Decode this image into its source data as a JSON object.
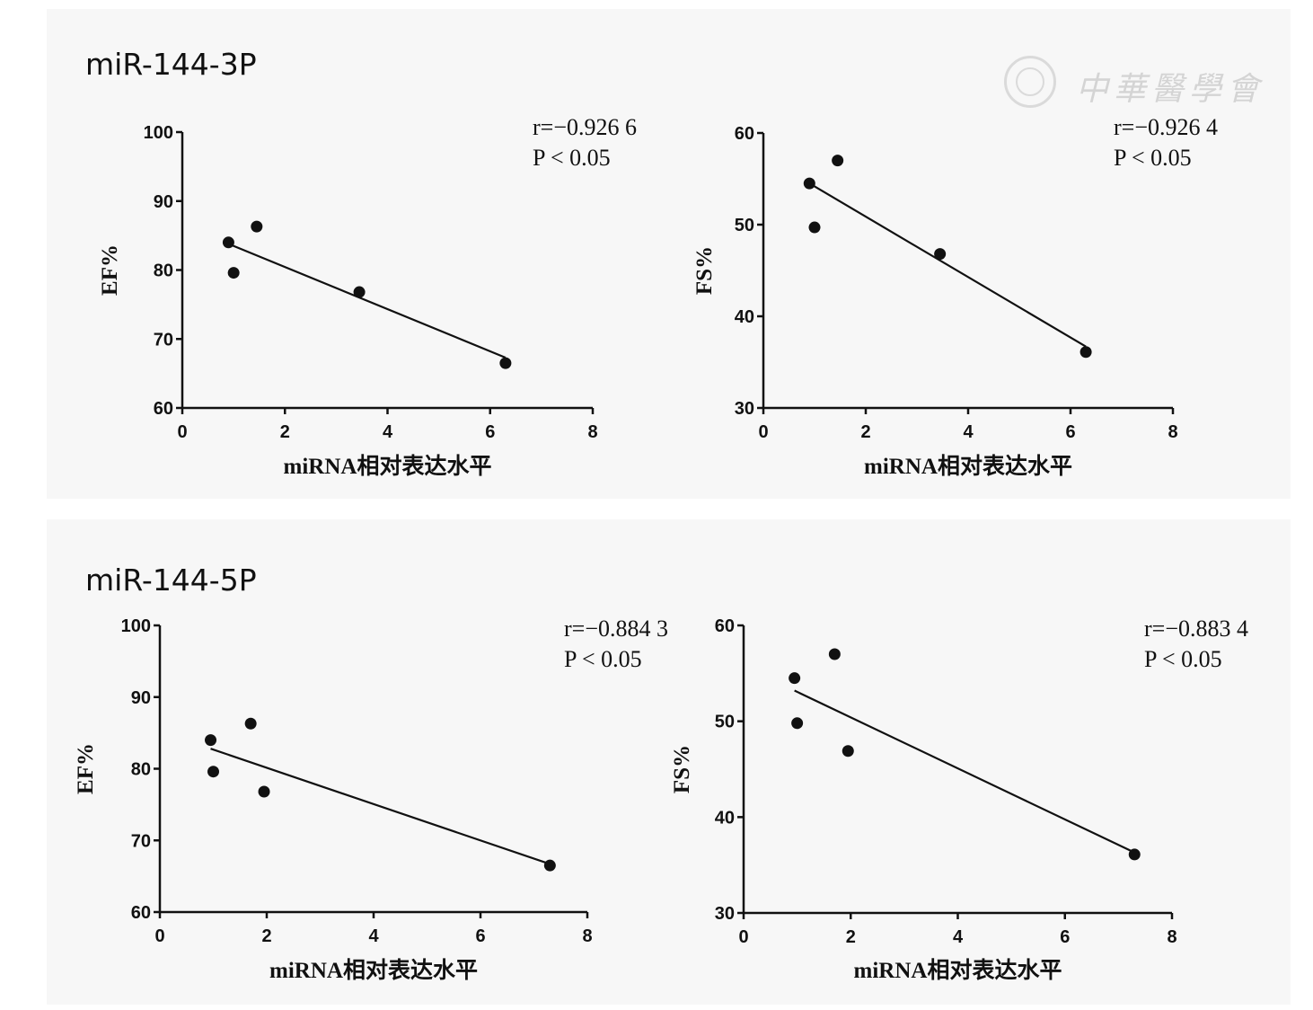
{
  "watermark": {
    "text": "中華醫學會",
    "icon": "society-seal-icon"
  },
  "groups": [
    {
      "title": "miR-144-3P"
    },
    {
      "title": "miR-144-5P"
    }
  ],
  "chart_data": [
    {
      "type": "scatter",
      "group": "miR-144-3P",
      "xlabel": "miRNA相对表达水平",
      "ylabel": "EF%",
      "xlim": [
        0,
        8
      ],
      "ylim": [
        60,
        100
      ],
      "xticks": [
        0,
        2,
        4,
        6,
        8
      ],
      "yticks": [
        60,
        70,
        80,
        90,
        100
      ],
      "points": [
        [
          0.9,
          84.0
        ],
        [
          1.0,
          79.6
        ],
        [
          1.45,
          86.3
        ],
        [
          3.45,
          76.8
        ],
        [
          6.3,
          66.5
        ]
      ],
      "regression": {
        "x": [
          0.9,
          6.3
        ],
        "y": [
          83.8,
          67.3
        ]
      },
      "r_label": "r=−0.926 6",
      "p_label": "P < 0.05"
    },
    {
      "type": "scatter",
      "group": "miR-144-3P",
      "xlabel": "miRNA相对表达水平",
      "ylabel": "FS%",
      "xlim": [
        0,
        8
      ],
      "ylim": [
        30,
        60
      ],
      "xticks": [
        0,
        2,
        4,
        6,
        8
      ],
      "yticks": [
        30,
        40,
        50,
        60
      ],
      "points": [
        [
          0.9,
          54.5
        ],
        [
          1.0,
          49.7
        ],
        [
          1.45,
          57.0
        ],
        [
          3.45,
          46.8
        ],
        [
          6.3,
          36.1
        ]
      ],
      "regression": {
        "x": [
          0.9,
          6.3
        ],
        "y": [
          54.5,
          36.7
        ]
      },
      "r_label": "r=−0.926 4",
      "p_label": "P < 0.05"
    },
    {
      "type": "scatter",
      "group": "miR-144-5P",
      "xlabel": "miRNA相对表达水平",
      "ylabel": "EF%",
      "xlim": [
        0,
        8
      ],
      "ylim": [
        60,
        100
      ],
      "xticks": [
        0,
        2,
        4,
        6,
        8
      ],
      "yticks": [
        60,
        70,
        80,
        90,
        100
      ],
      "points": [
        [
          0.95,
          84.0
        ],
        [
          1.0,
          79.6
        ],
        [
          1.7,
          86.3
        ],
        [
          1.95,
          76.8
        ],
        [
          7.3,
          66.5
        ]
      ],
      "regression": {
        "x": [
          0.95,
          7.3
        ],
        "y": [
          82.8,
          66.7
        ]
      },
      "r_label": "r=−0.884 3",
      "p_label": "P < 0.05"
    },
    {
      "type": "scatter",
      "group": "miR-144-5P",
      "xlabel": "miRNA相对表达水平",
      "ylabel": "FS%",
      "xlim": [
        0,
        8
      ],
      "ylim": [
        30,
        60
      ],
      "xticks": [
        0,
        2,
        4,
        6,
        8
      ],
      "yticks": [
        30,
        40,
        50,
        60
      ],
      "points": [
        [
          0.95,
          54.5
        ],
        [
          1.0,
          49.8
        ],
        [
          1.7,
          57.0
        ],
        [
          1.95,
          46.9
        ],
        [
          7.3,
          36.1
        ]
      ],
      "regression": {
        "x": [
          0.95,
          7.3
        ],
        "y": [
          53.2,
          36.3
        ]
      },
      "r_label": "r=−0.883 4",
      "p_label": "P < 0.05"
    }
  ]
}
